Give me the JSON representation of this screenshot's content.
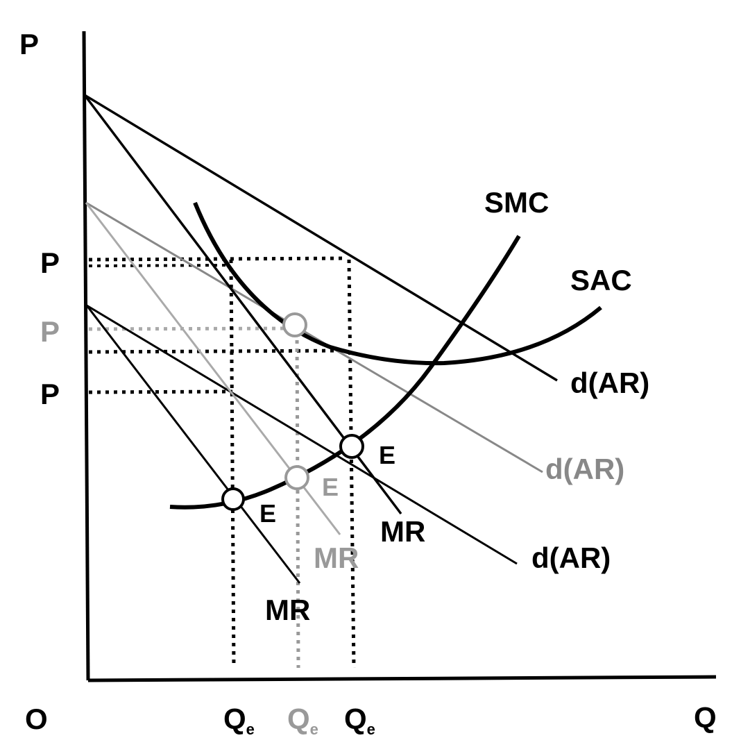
{
  "axes": {
    "y_label": "P",
    "x_label": "Q",
    "origin_label": "O"
  },
  "price_labels": [
    "P",
    "P",
    "P"
  ],
  "quantity_labels": [
    {
      "main": "Q",
      "sub": "e"
    },
    {
      "main": "Q",
      "sub": "e"
    },
    {
      "main": "Q",
      "sub": "e"
    }
  ],
  "curves": {
    "smc": "SMC",
    "sac": "SAC",
    "demand_top": "d(AR)",
    "demand_mid": "d(AR)",
    "demand_low": "d(AR)",
    "mr_top": "MR",
    "mr_mid": "MR",
    "mr_low": "MR"
  },
  "equilibrium_labels": [
    "E",
    "E",
    "E"
  ],
  "colors": {
    "ink": "#000000",
    "gray": "#888888",
    "light_gray": "#aaaaaa"
  }
}
